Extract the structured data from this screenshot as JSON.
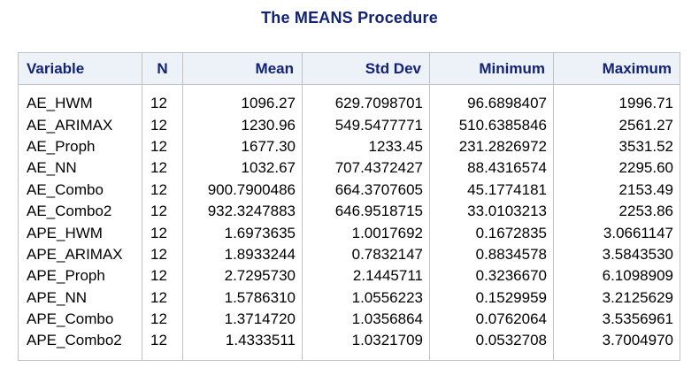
{
  "title": "The MEANS Procedure",
  "columns": [
    "Variable",
    "N",
    "Mean",
    "Std Dev",
    "Minimum",
    "Maximum"
  ],
  "rows": [
    {
      "variable": "AE_HWM",
      "n": "12",
      "mean": "1096.27",
      "std": "629.7098701",
      "min": "96.6898407",
      "max": "1996.71"
    },
    {
      "variable": "AE_ARIMAX",
      "n": "12",
      "mean": "1230.96",
      "std": "549.5477771",
      "min": "510.6385846",
      "max": "2561.27"
    },
    {
      "variable": "AE_Proph",
      "n": "12",
      "mean": "1677.30",
      "std": "1233.45",
      "min": "231.2826972",
      "max": "3531.52"
    },
    {
      "variable": "AE_NN",
      "n": "12",
      "mean": "1032.67",
      "std": "707.4372427",
      "min": "88.4316574",
      "max": "2295.60"
    },
    {
      "variable": "AE_Combo",
      "n": "12",
      "mean": "900.7900486",
      "std": "664.3707605",
      "min": "45.1774181",
      "max": "2153.49"
    },
    {
      "variable": "AE_Combo2",
      "n": "12",
      "mean": "932.3247883",
      "std": "646.9518715",
      "min": "33.0103213",
      "max": "2253.86"
    },
    {
      "variable": "APE_HWM",
      "n": "12",
      "mean": "1.6973635",
      "std": "1.0017692",
      "min": "0.1672835",
      "max": "3.0661147"
    },
    {
      "variable": "APE_ARIMAX",
      "n": "12",
      "mean": "1.8933244",
      "std": "0.7832147",
      "min": "0.8834578",
      "max": "3.5843530"
    },
    {
      "variable": "APE_Proph",
      "n": "12",
      "mean": "2.7295730",
      "std": "2.1445711",
      "min": "0.3236670",
      "max": "6.1098909"
    },
    {
      "variable": "APE_NN",
      "n": "12",
      "mean": "1.5786310",
      "std": "1.0556223",
      "min": "0.1529959",
      "max": "3.2125629"
    },
    {
      "variable": "APE_Combo",
      "n": "12",
      "mean": "1.3714720",
      "std": "1.0356864",
      "min": "0.0762064",
      "max": "3.5356961"
    },
    {
      "variable": "APE_Combo2",
      "n": "12",
      "mean": "1.4333511",
      "std": "1.0321709",
      "min": "0.0532708",
      "max": "3.7004970"
    }
  ],
  "colors": {
    "header_text": "#112277",
    "header_bg": "#edf2f9",
    "border": "#c1c1c1"
  }
}
